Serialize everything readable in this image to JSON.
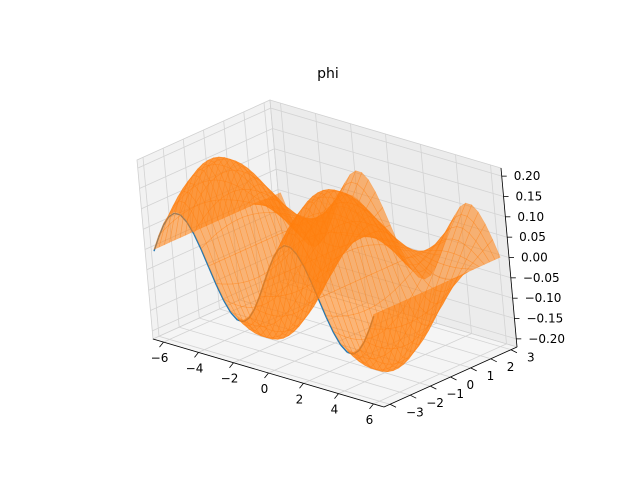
{
  "chart_data": {
    "type": "surface3d",
    "title": "phi",
    "series": [
      {
        "color": "#ff7f0e"
      },
      {
        "color": "#1f77b4"
      }
    ],
    "x_ticks": [
      "−6",
      "−4",
      "−2",
      "0",
      "2",
      "4",
      "6"
    ],
    "x_values": [
      -6,
      -4,
      -2,
      0,
      2,
      4,
      6
    ],
    "y_ticks": [
      "−3",
      "−2",
      "−1",
      "0",
      "1",
      "2",
      "3"
    ],
    "y_values": [
      -3,
      -2,
      -1,
      0,
      1,
      2,
      3
    ],
    "z_ticks": [
      "−0.20",
      "−0.15",
      "−0.10",
      "−0.05",
      "0.00",
      "0.05",
      "0.10",
      "0.15",
      "0.20"
    ],
    "z_values": [
      -0.2,
      -0.15,
      -0.1,
      -0.05,
      0.0,
      0.05,
      0.1,
      0.15,
      0.2
    ],
    "xlim": [
      -6.6,
      6.6
    ],
    "ylim": [
      -3.3,
      3.3
    ],
    "zlim": [
      -0.22,
      0.22
    ],
    "surface": {
      "amplitude": 0.2,
      "x_range": [
        -6.28,
        6.28
      ],
      "y_range": [
        -3.14,
        3.14
      ]
    },
    "grid": true
  }
}
